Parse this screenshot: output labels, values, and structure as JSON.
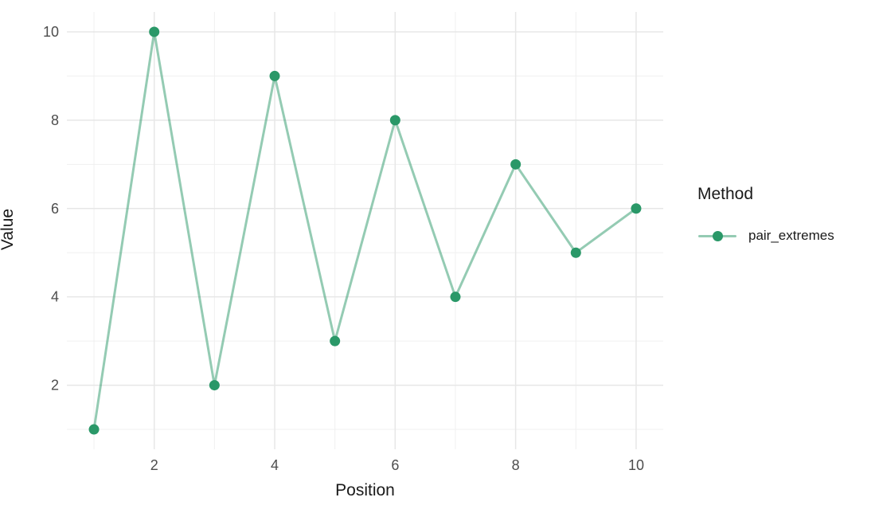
{
  "chart_data": {
    "type": "line",
    "title": "",
    "xlabel": "Position",
    "ylabel": "Value",
    "x": [
      1,
      2,
      3,
      4,
      5,
      6,
      7,
      8,
      9,
      10
    ],
    "series": [
      {
        "name": "pair_extremes",
        "values": [
          1,
          10,
          2,
          9,
          3,
          8,
          4,
          7,
          5,
          6
        ]
      }
    ],
    "x_ticks": [
      2,
      4,
      6,
      8,
      10
    ],
    "y_ticks": [
      2,
      4,
      6,
      8,
      10
    ],
    "x_minor_gridlines": [
      1,
      3,
      5,
      7,
      9
    ],
    "y_minor_gridlines": [
      1,
      3,
      5,
      7,
      9
    ],
    "xlim": [
      0.55,
      10.45
    ],
    "ylim": [
      0.55,
      10.45
    ],
    "grid": true,
    "legend_position": "right",
    "legend_title": "Method",
    "colors": {
      "point": "#2a9868",
      "line": "rgba(42, 152, 104, 0.5)",
      "grid_major": "#e7e7e7",
      "grid_minor": "#f0f0f0",
      "tick_label": "#4d4d4d",
      "axis_title": "#1a1a1a",
      "background": "#ffffff"
    },
    "point_radius": 6.5,
    "line_width": 3
  }
}
